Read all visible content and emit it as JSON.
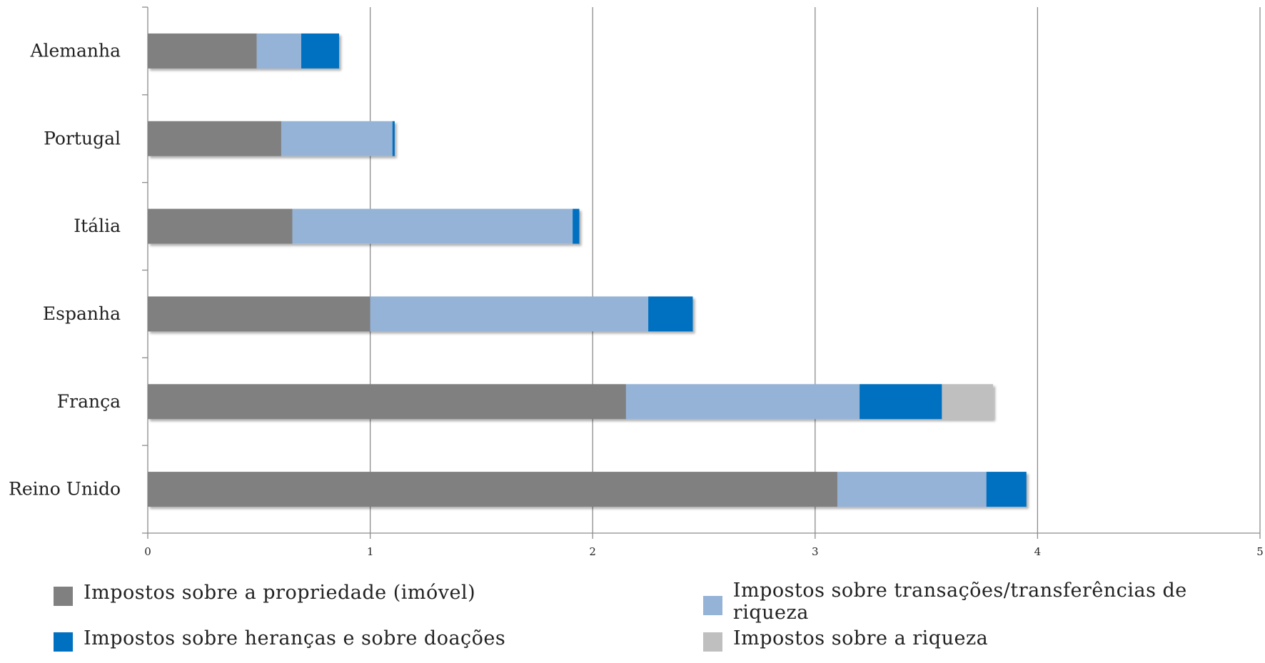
{
  "chart_data": {
    "type": "bar",
    "orientation": "horizontal",
    "stacked": true,
    "categories": [
      "Alemanha",
      "Portugal",
      "Itália",
      "Espanha",
      "França",
      "Reino Unido"
    ],
    "series": [
      {
        "name": "Impostos sobre a propriedade (imóvel)",
        "color": "#808080",
        "values": [
          0.49,
          0.6,
          0.65,
          1.0,
          2.15,
          3.1
        ]
      },
      {
        "name": "Impostos sobre transações/transferências de riqueza",
        "color": "#95b3d7",
        "values": [
          0.2,
          0.5,
          1.26,
          1.25,
          1.05,
          0.67
        ]
      },
      {
        "name": "Impostos sobre heranças e sobre doações",
        "color": "#0070c0",
        "values": [
          0.17,
          0.01,
          0.03,
          0.2,
          0.37,
          0.18
        ]
      },
      {
        "name": "Impostos sobre a riqueza",
        "color": "#bfbfbf",
        "values": [
          0,
          0,
          0,
          0,
          0.23,
          0
        ]
      }
    ],
    "xlim": [
      0,
      5
    ],
    "xticks": [
      "0",
      "1",
      "2",
      "3",
      "4",
      "5"
    ],
    "grid": "vertical",
    "legend_position": "bottom",
    "title": "",
    "xlabel": "",
    "ylabel": ""
  }
}
